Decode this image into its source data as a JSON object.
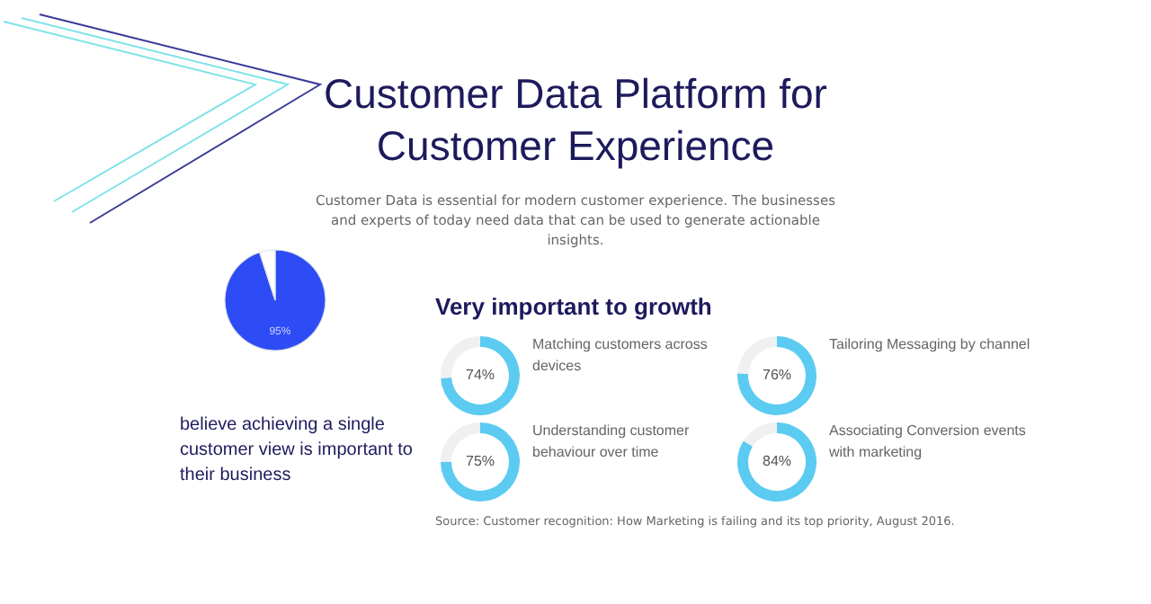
{
  "chart_data": [
    {
      "type": "other",
      "title": "Customer Data Platform for Customer Experience",
      "subtitle": "Customer Data is essential for modern customer experience. The businesses and experts of today need data that can be used to generate actionable insights.",
      "annotations": [
        "Source: Customer recognition: How Marketing is failing and its top priority, August 2016."
      ]
    },
    {
      "type": "pie",
      "categories": [
        null,
        null
      ],
      "values": [
        95,
        5
      ],
      "colors": [
        "#2e4cf5",
        "#ffffff"
      ],
      "value_labels": [
        "95%",
        null
      ],
      "annotations": [
        "believe achieving a single customer view is important to their business"
      ]
    },
    {
      "type": "other",
      "title": "Very important to growth"
    },
    {
      "type": "donut",
      "title": "Matching customers across devices",
      "categories": [
        null,
        null
      ],
      "values": [
        74,
        26
      ],
      "colors": [
        "#5ccbf2",
        "#eef0f2"
      ],
      "value_labels": [
        "74%",
        null
      ]
    },
    {
      "type": "donut",
      "title": "Tailoring Messaging by channel",
      "categories": [
        null,
        null
      ],
      "values": [
        76,
        24
      ],
      "colors": [
        "#5ccbf2",
        "#eef0f2"
      ],
      "value_labels": [
        "76%",
        null
      ]
    },
    {
      "type": "donut",
      "title": "Understanding customer behaviour over time",
      "categories": [
        null,
        null
      ],
      "values": [
        75,
        25
      ],
      "colors": [
        "#5ccbf2",
        "#eef0f2"
      ],
      "value_labels": [
        "75%",
        null
      ]
    },
    {
      "type": "donut",
      "title": "Associating Conversion events with marketing",
      "categories": [
        null,
        null
      ],
      "values": [
        84,
        16
      ],
      "colors": [
        "#5ccbf2",
        "#eef0f2"
      ],
      "value_labels": [
        "84%",
        null
      ]
    }
  ]
}
